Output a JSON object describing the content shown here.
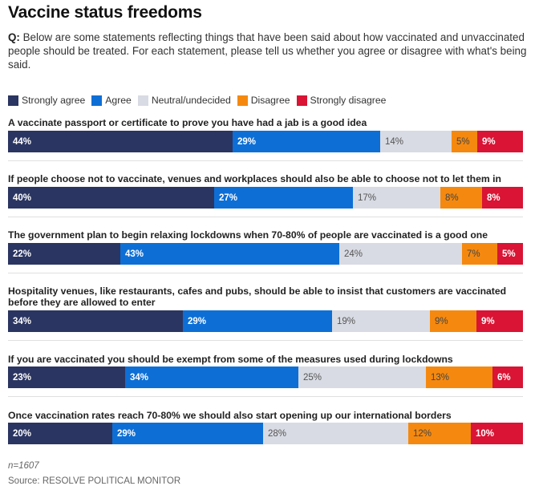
{
  "title": "Vaccine status freedoms",
  "question_prefix": "Q:",
  "question": "Below are some statements reflecting things that have been said about how vaccinated and unvaccinated people should be treated. For each statement, please tell us whether you agree or disagree with what's being said.",
  "legend": [
    {
      "label": "Strongly agree",
      "color": "#2a3561"
    },
    {
      "label": "Agree",
      "color": "#0d6fd6"
    },
    {
      "label": "Neutral/undecided",
      "color": "#d8dbe3"
    },
    {
      "label": "Disagree",
      "color": "#f5890f"
    },
    {
      "label": "Strongly disagree",
      "color": "#d91434"
    }
  ],
  "footer": {
    "n": "n=1607",
    "source": "Source: RESOLVE POLITICAL MONITOR"
  },
  "chart_data": {
    "type": "bar",
    "orientation": "horizontal",
    "stacked": true,
    "percent_stacked": true,
    "categories": [
      "A vaccinate passport or certificate to prove you have had a jab is a good idea",
      "If people choose not to vaccinate, venues and workplaces should also be able to choose not to let them in",
      "The government plan to begin relaxing lockdowns when 70-80% of people are vaccinated is a good one",
      "Hospitality venues, like restaurants, cafes and pubs, should be able to insist that customers are vaccinated before they are allowed to enter",
      "If you are vaccinated you should be exempt from some of the measures used during lockdowns",
      "Once vaccination rates reach 70-80% we should also start opening up our international borders"
    ],
    "series": [
      {
        "name": "Strongly agree",
        "values": [
          44,
          40,
          22,
          34,
          23,
          20
        ]
      },
      {
        "name": "Agree",
        "values": [
          29,
          27,
          43,
          29,
          34,
          29
        ]
      },
      {
        "name": "Neutral/undecided",
        "values": [
          14,
          17,
          24,
          19,
          25,
          28
        ]
      },
      {
        "name": "Disagree",
        "values": [
          5,
          8,
          7,
          9,
          13,
          12
        ]
      },
      {
        "name": "Strongly disagree",
        "values": [
          9,
          8,
          5,
          9,
          6,
          10
        ]
      }
    ],
    "value_suffix": "%",
    "legend_position": "top-left",
    "grid": false
  }
}
